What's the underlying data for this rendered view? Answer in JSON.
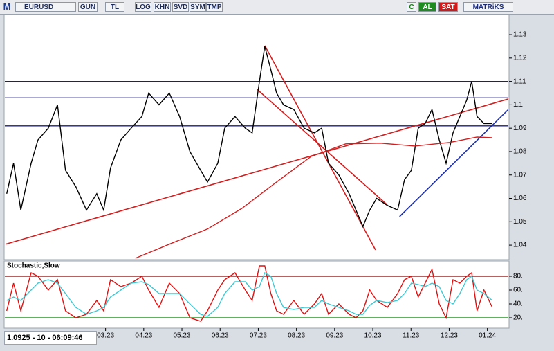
{
  "toolbar": {
    "logo": "M",
    "symbol": "EURUSD",
    "buttons": [
      "GUN",
      "TL",
      "LOG",
      "KHN",
      "SVD",
      "SYM",
      "TMP"
    ],
    "right_buttons": [
      "C",
      "AL",
      "SAT"
    ],
    "brand": "MATRiKS"
  },
  "status": "1.0925 - 10 - 06:09:46",
  "chart_data": [
    {
      "type": "line",
      "xlim": [
        0.38,
        13.55
      ],
      "ylim": [
        1.0344,
        1.1386
      ],
      "yticks": [
        1.04,
        1.05,
        1.06,
        1.07,
        1.08,
        1.09,
        1.1,
        1.11,
        1.12,
        1.13
      ],
      "series": [
        {
          "color": "#000000",
          "x": [
            0.41,
            0.59,
            0.78,
            1.05,
            1.23,
            1.5,
            1.74,
            1.95,
            2.22,
            2.5,
            2.77,
            2.95,
            3.13,
            3.4,
            3.67,
            3.95,
            4.13,
            4.4,
            4.67,
            4.94,
            5.21,
            5.49,
            5.67,
            5.94,
            6.12,
            6.39,
            6.66,
            6.84,
            7.03,
            7.17,
            7.33,
            7.48,
            7.66,
            7.93,
            8.2,
            8.47,
            8.66,
            8.84,
            9.11,
            9.38,
            9.56,
            9.74,
            9.92,
            10.1,
            10.38,
            10.65,
            10.83,
            11.01,
            11.19,
            11.37,
            11.55,
            11.74,
            11.92,
            12.1,
            12.28,
            12.46,
            12.59,
            12.73,
            12.91,
            13.13
          ],
          "values": [
            1.062,
            1.075,
            1.055,
            1.075,
            1.085,
            1.09,
            1.1,
            1.072,
            1.065,
            1.055,
            1.062,
            1.055,
            1.073,
            1.085,
            1.09,
            1.095,
            1.105,
            1.1,
            1.105,
            1.095,
            1.08,
            1.072,
            1.067,
            1.075,
            1.09,
            1.095,
            1.09,
            1.088,
            1.11,
            1.125,
            1.115,
            1.105,
            1.1,
            1.098,
            1.09,
            1.088,
            1.09,
            1.075,
            1.07,
            1.062,
            1.055,
            1.048,
            1.055,
            1.06,
            1.057,
            1.055,
            1.068,
            1.072,
            1.09,
            1.092,
            1.098,
            1.085,
            1.075,
            1.088,
            1.095,
            1.102,
            1.11,
            1.095,
            1.092,
            1.092
          ]
        },
        {
          "color": "#d21e1e",
          "x": [
            3.78,
            4.76,
            5.67,
            6.57,
            7.48,
            8.38,
            9.29,
            10.2,
            11.1,
            12.01,
            12.73,
            13.13
          ],
          "values": [
            1.0344,
            1.041,
            1.0469,
            1.0557,
            1.067,
            1.0779,
            1.0833,
            1.0836,
            1.0824,
            1.0839,
            1.0862,
            1.0859
          ]
        }
      ],
      "hlines": [
        {
          "value": 1.11,
          "color": "#1a1a8c"
        },
        {
          "value": 1.103,
          "color": "#1a1a8c"
        },
        {
          "value": 1.091,
          "color": "#1a1a8c"
        }
      ],
      "trendlines": [
        {
          "x": [
            0.38,
            13.55
          ],
          "y": [
            1.0404,
            1.1025
          ],
          "color": "#d21e1e"
        },
        {
          "x": [
            7.17,
            10.07
          ],
          "y": [
            1.1253,
            1.038
          ],
          "color": "#d21e1e"
        },
        {
          "x": [
            6.97,
            10.38
          ],
          "y": [
            1.1066,
            1.0572
          ],
          "color": "#d21e1e"
        },
        {
          "x": [
            10.7,
            13.55
          ],
          "y": [
            1.0522,
            1.098
          ],
          "color": "#1a2fb4"
        }
      ]
    },
    {
      "type": "line",
      "title": "Stochastic,Slow",
      "xlim": [
        0.38,
        13.55
      ],
      "ylim": [
        5,
        102
      ],
      "yticks": [
        {
          "value": 20,
          "label": "20."
        },
        {
          "value": 40,
          "label": "40."
        },
        {
          "value": 60,
          "label": "60."
        },
        {
          "value": 80,
          "label": "80."
        }
      ],
      "xticks": [
        {
          "value": 3,
          "label": "03.23"
        },
        {
          "value": 4,
          "label": "04.23"
        },
        {
          "value": 5,
          "label": "05.23"
        },
        {
          "value": 6,
          "label": "06.23"
        },
        {
          "value": 7,
          "label": "07.23"
        },
        {
          "value": 8,
          "label": "08.23"
        },
        {
          "value": 9,
          "label": "09.23"
        },
        {
          "value": 10,
          "label": "10.23"
        },
        {
          "value": 11,
          "label": "11.23"
        },
        {
          "value": 12,
          "label": "12.23"
        },
        {
          "value": 13,
          "label": "01.24"
        }
      ],
      "series": [
        {
          "color": "#e01010",
          "x": [
            0.41,
            0.59,
            0.78,
            1.05,
            1.23,
            1.5,
            1.74,
            1.95,
            2.22,
            2.5,
            2.77,
            2.95,
            3.13,
            3.4,
            3.67,
            3.95,
            4.13,
            4.4,
            4.67,
            4.94,
            5.21,
            5.49,
            5.67,
            5.94,
            6.12,
            6.39,
            6.66,
            6.84,
            7.03,
            7.17,
            7.33,
            7.48,
            7.66,
            7.93,
            8.2,
            8.47,
            8.66,
            8.84,
            9.11,
            9.38,
            9.56,
            9.74,
            9.92,
            10.1,
            10.38,
            10.65,
            10.83,
            11.01,
            11.19,
            11.37,
            11.55,
            11.74,
            11.92,
            12.1,
            12.28,
            12.46,
            12.59,
            12.73,
            12.91,
            13.13
          ],
          "values": [
            30,
            70,
            30,
            85,
            80,
            60,
            75,
            30,
            20,
            25,
            45,
            30,
            75,
            65,
            70,
            80,
            60,
            35,
            70,
            55,
            20,
            15,
            30,
            60,
            75,
            85,
            60,
            45,
            95,
            95,
            55,
            30,
            25,
            45,
            25,
            40,
            55,
            25,
            40,
            25,
            20,
            30,
            60,
            45,
            35,
            55,
            75,
            80,
            50,
            70,
            90,
            40,
            20,
            75,
            70,
            80,
            85,
            30,
            60,
            35
          ]
        },
        {
          "color": "#3cc8d2",
          "x": [
            0.41,
            0.59,
            0.78,
            1.05,
            1.23,
            1.5,
            1.74,
            1.95,
            2.22,
            2.5,
            2.77,
            2.95,
            3.13,
            3.4,
            3.67,
            3.95,
            4.13,
            4.4,
            4.67,
            4.94,
            5.21,
            5.49,
            5.67,
            5.94,
            6.12,
            6.39,
            6.66,
            6.84,
            7.03,
            7.17,
            7.33,
            7.48,
            7.66,
            7.93,
            8.2,
            8.47,
            8.66,
            8.84,
            9.11,
            9.38,
            9.56,
            9.74,
            9.92,
            10.1,
            10.38,
            10.65,
            10.83,
            11.01,
            11.19,
            11.37,
            11.55,
            11.74,
            11.92,
            12.1,
            12.28,
            12.46,
            12.59,
            12.73,
            12.91,
            13.13
          ],
          "values": [
            45,
            50,
            45,
            60,
            70,
            75,
            70,
            55,
            35,
            25,
            30,
            35,
            50,
            60,
            70,
            72,
            68,
            55,
            55,
            55,
            40,
            25,
            22,
            35,
            55,
            72,
            72,
            60,
            65,
            85,
            80,
            55,
            35,
            32,
            35,
            35,
            45,
            40,
            35,
            30,
            25,
            25,
            38,
            45,
            42,
            45,
            55,
            70,
            68,
            65,
            70,
            65,
            45,
            40,
            55,
            75,
            80,
            60,
            55,
            45
          ]
        }
      ],
      "hlines": [
        {
          "value": 80,
          "color": "#8b0000"
        },
        {
          "value": 20,
          "color": "#008000"
        }
      ]
    }
  ]
}
